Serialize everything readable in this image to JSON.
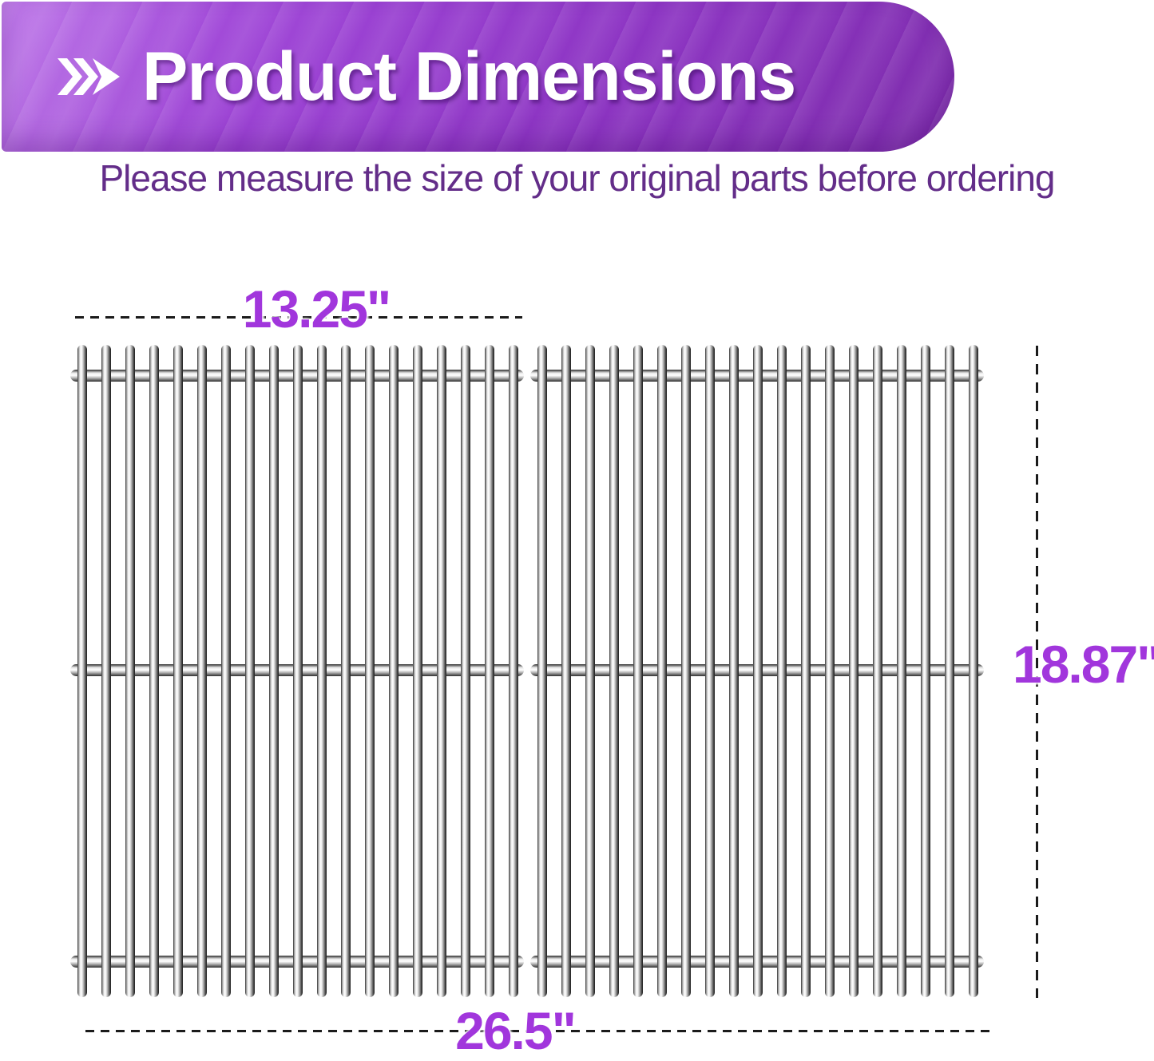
{
  "header": {
    "title": "Product Dimensions",
    "icon": "chevron-double-right"
  },
  "subtitle": "Please measure the size of your original parts before ordering",
  "diagram": {
    "top_width": "13.25\"",
    "height": "18.87\"",
    "total_width": "26.5\"",
    "grate_count": 2,
    "rods_per_grate": 19,
    "crossbars_per_grate": 3
  },
  "colors": {
    "banner_purple_light": "#b05ce4",
    "banner_purple_dark": "#7d2cab",
    "label_purple": "#a136dc",
    "subtitle_purple": "#632d89",
    "dash_color": "#1b1b1b"
  }
}
